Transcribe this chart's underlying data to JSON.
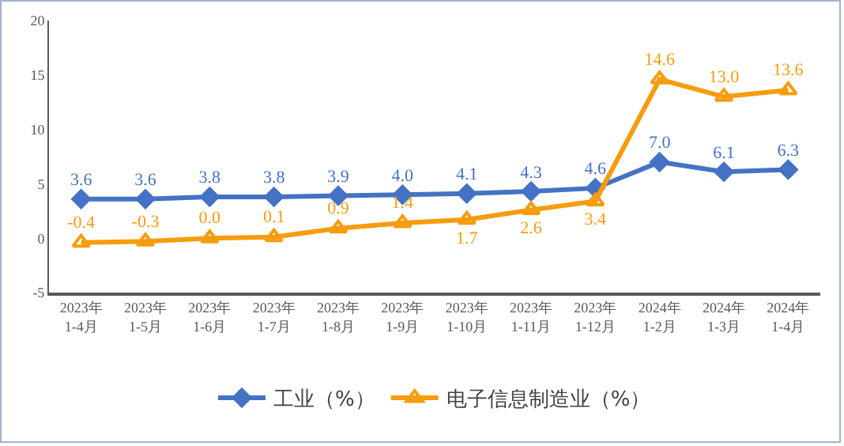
{
  "chart_data": {
    "type": "line",
    "categories": [
      "2023年\n1-4月",
      "2023年\n1-5月",
      "2023年\n1-6月",
      "2023年\n1-7月",
      "2023年\n1-8月",
      "2023年\n1-9月",
      "2023年\n1-10月",
      "2023年\n1-11月",
      "2023年\n1-12月",
      "2024年\n1-2月",
      "2024年\n1-3月",
      "2024年\n1-4月"
    ],
    "series": [
      {
        "name": "工业（%）",
        "color": "#4472c4",
        "marker": "diamond",
        "values": [
          3.6,
          3.6,
          3.8,
          3.8,
          3.9,
          4.0,
          4.1,
          4.3,
          4.6,
          7.0,
          6.1,
          6.3
        ],
        "value_labels": [
          "3.6",
          "3.6",
          "3.8",
          "3.8",
          "3.9",
          "4.0",
          "4.1",
          "4.3",
          "4.6",
          "7.0",
          "6.1",
          "6.3"
        ]
      },
      {
        "name": "电子信息制造业（%）",
        "color": "#f59d0e",
        "marker": "triangle",
        "values": [
          -0.4,
          -0.3,
          0.0,
          0.1,
          0.9,
          1.4,
          1.7,
          2.6,
          3.4,
          14.6,
          13.0,
          13.6
        ],
        "value_labels": [
          "-0.4",
          "-0.3",
          "0.0",
          "0.1",
          "0.9",
          "1.4",
          "1.7",
          "2.6",
          "3.4",
          "14.6",
          "13.0",
          "13.6"
        ]
      }
    ],
    "ylim": [
      -5,
      20
    ],
    "yticks": [
      -5,
      0,
      5,
      10,
      15,
      20
    ],
    "grid": false,
    "legend": "bottom",
    "line_style": "solid"
  }
}
